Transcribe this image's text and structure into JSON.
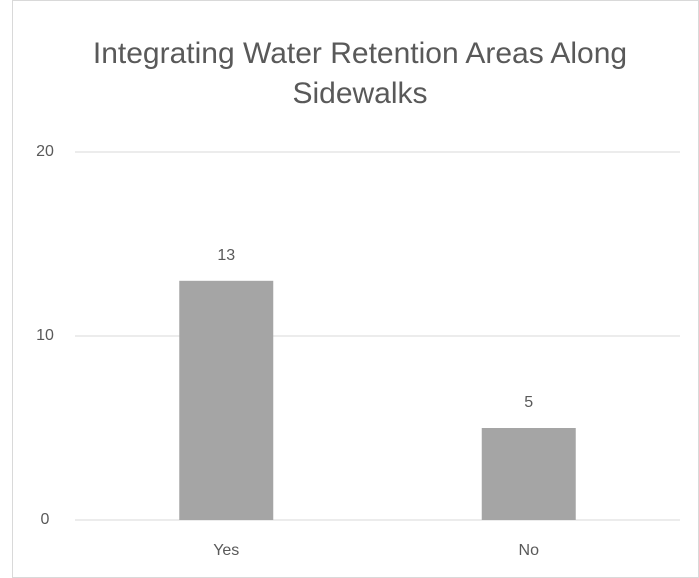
{
  "chart_data": {
    "type": "bar",
    "title": "Integrating Water Retention Areas Along Sidewalks",
    "categories": [
      "Yes",
      "No"
    ],
    "values": [
      13,
      5
    ],
    "color": "#a5a5a5",
    "ylim": [
      0,
      20
    ],
    "yticks": [
      0,
      10,
      20
    ],
    "grid": true
  }
}
